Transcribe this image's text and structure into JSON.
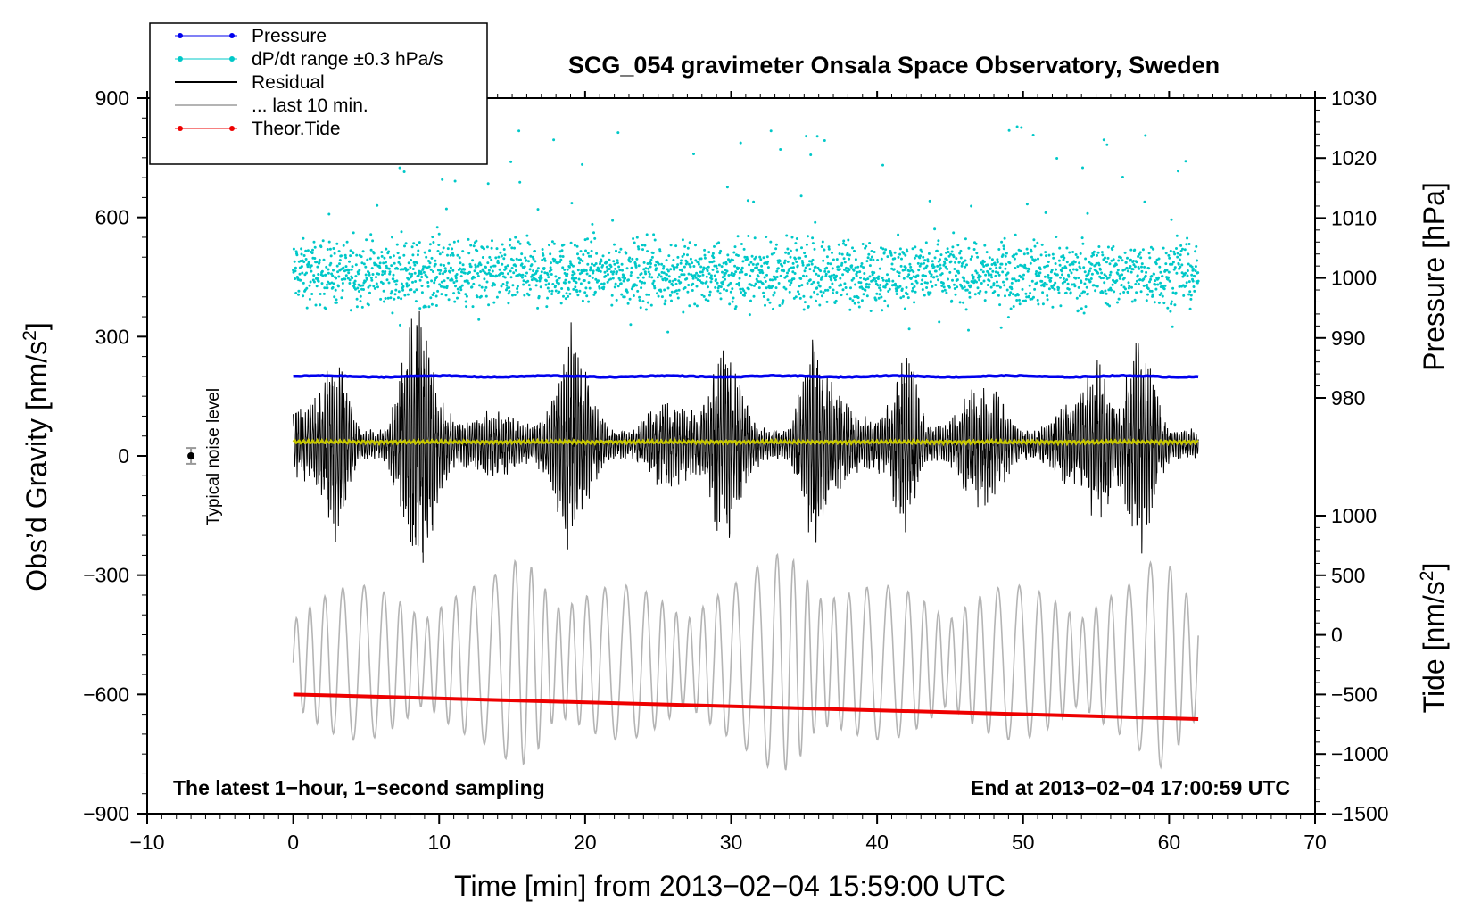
{
  "chart_data": {
    "type": "line",
    "title": "SCG_054 gravimeter Onsala Space Observatory, Sweden",
    "xlabel": "Time [min] from 2013−02−04 15:59:00 UTC",
    "ylabel_left": "Obs’d Gravity [nm/s",
    "ylabel_left_sup": "2",
    "ylabel_left_close": "]",
    "ylabel_right_top": "Pressure [hPa]",
    "ylabel_right_bottom": "Tide [nm/s",
    "ylabel_right_bottom_sup": "2",
    "ylabel_right_bottom_close": "]",
    "xlim": [
      -10,
      70
    ],
    "ylim_left": [
      -900,
      900
    ],
    "x_ticks": [
      {
        "value": -10,
        "label": "−10"
      },
      {
        "value": 0,
        "label": "0"
      },
      {
        "value": 10,
        "label": "10"
      },
      {
        "value": 20,
        "label": "20"
      },
      {
        "value": 30,
        "label": "30"
      },
      {
        "value": 40,
        "label": "40"
      },
      {
        "value": 50,
        "label": "50"
      },
      {
        "value": 60,
        "label": "60"
      },
      {
        "value": 70,
        "label": "70"
      }
    ],
    "y_left_ticks": [
      {
        "value": 900,
        "label": "900"
      },
      {
        "value": 600,
        "label": "600"
      },
      {
        "value": 300,
        "label": "300"
      },
      {
        "value": 0,
        "label": "0"
      },
      {
        "value": -300,
        "label": "−300"
      },
      {
        "value": -600,
        "label": "−600"
      },
      {
        "value": -900,
        "label": "−900"
      }
    ],
    "pressure_axis": {
      "range": [
        980,
        1030
      ],
      "ticks": [
        {
          "value": 1030,
          "label": "1030"
        },
        {
          "value": 1020,
          "label": "1020"
        },
        {
          "value": 1010,
          "label": "1010"
        },
        {
          "value": 1000,
          "label": "1000"
        },
        {
          "value": 990,
          "label": "990"
        },
        {
          "value": 980,
          "label": "980"
        }
      ]
    },
    "tide_axis": {
      "range": [
        -1500,
        1000
      ],
      "ticks": [
        {
          "value": 1000,
          "label": "1000"
        },
        {
          "value": 500,
          "label": "500"
        },
        {
          "value": 0,
          "label": "0"
        },
        {
          "value": -500,
          "label": "−500"
        },
        {
          "value": -1000,
          "label": "−1000"
        },
        {
          "value": -1500,
          "label": "−1500"
        }
      ]
    },
    "legend": [
      {
        "label": "Pressure",
        "color": "#0000ee",
        "style": "line-dot"
      },
      {
        "label": "dP/dt range ±0.3 hPa/s",
        "color": "#00c8c8",
        "style": "line-dot"
      },
      {
        "label": "Residual",
        "color": "#000000",
        "style": "line"
      },
      {
        "label": "... last 10 min.",
        "color": "#b4b4b4",
        "style": "line"
      },
      {
        "label": "Theor.Tide",
        "color": "#ee0000",
        "style": "line-dot"
      }
    ],
    "annotations": {
      "bottom_left": "The latest 1−hour, 1−second sampling",
      "bottom_right": "End at 2013−02−04 17:00:59 UTC",
      "noise_label": "Typical noise level"
    },
    "series": [
      {
        "name": "Pressure",
        "axis": "left",
        "color": "#0000ee",
        "x": [
          0,
          62
        ],
        "values": [
          200,
          200
        ]
      },
      {
        "name": "Theor.Tide",
        "axis": "left",
        "color": "#ee0000",
        "x": [
          0,
          62
        ],
        "values": [
          -600,
          -662
        ]
      },
      {
        "name": "Residual",
        "axis": "left",
        "color": "#000000",
        "x_range": [
          0,
          62
        ],
        "center": 30,
        "typical_amplitude": 150,
        "max_amplitude": 420
      },
      {
        "name": "... last 10 min.",
        "axis": "left",
        "color": "#b4b4b4",
        "x_range": [
          0,
          62
        ],
        "center": -520,
        "typical_amplitude": 150,
        "max_amplitude": 330
      },
      {
        "name": "dP/dt range ±0.3 hPa/s",
        "axis": "left",
        "color": "#00c8c8",
        "x_range": [
          0,
          62
        ],
        "center": 460,
        "spread": 60,
        "extremes": [
          310,
          840
        ]
      },
      {
        "name": "Residual mean",
        "axis": "left",
        "color": "#c8c800",
        "x": [
          0,
          62
        ],
        "values": [
          35,
          35
        ]
      }
    ],
    "noise_bar": {
      "x": -7,
      "value": 0,
      "error": 20
    }
  },
  "colors": {
    "axis": "#000000",
    "pressure": "#0000ee",
    "dpdt": "#00c8c8",
    "residual": "#000000",
    "last10": "#b4b4b4",
    "tide": "#ee0000",
    "mean": "#c8c800"
  }
}
